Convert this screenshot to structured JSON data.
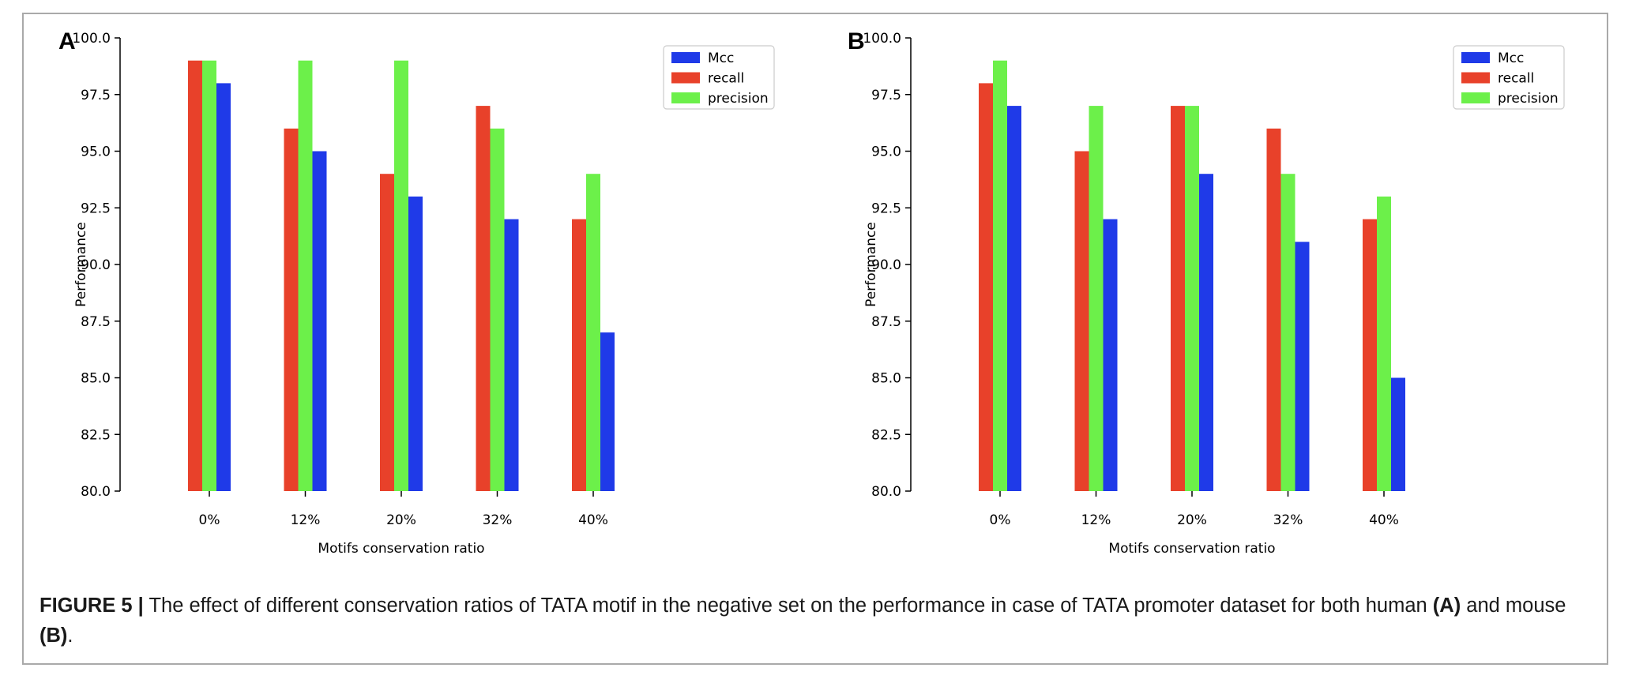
{
  "chart_data": [
    {
      "type": "bar",
      "panel_label": "A",
      "categories": [
        "0%",
        "12%",
        "20%",
        "32%",
        "40%"
      ],
      "series": [
        {
          "name": "recall",
          "color": "#e8412a",
          "values": [
            99,
            96,
            94,
            97,
            92
          ]
        },
        {
          "name": "precision",
          "color": "#6cf04a",
          "values": [
            99,
            99,
            99,
            96,
            94
          ]
        },
        {
          "name": "Mcc",
          "color": "#1f3ae8",
          "values": [
            98,
            95,
            93,
            92,
            87
          ]
        }
      ],
      "legend_order": [
        "Mcc",
        "recall",
        "precision"
      ],
      "legend_position": "top-right",
      "xlabel": "Motifs conservation ratio",
      "ylabel": "Performance",
      "ylim": [
        80.0,
        100.0
      ],
      "yticks": [
        "80.0",
        "82.5",
        "85.0",
        "87.5",
        "90.0",
        "92.5",
        "95.0",
        "97.5",
        "100.0"
      ],
      "grid": false
    },
    {
      "type": "bar",
      "panel_label": "B",
      "categories": [
        "0%",
        "12%",
        "20%",
        "32%",
        "40%"
      ],
      "series": [
        {
          "name": "recall",
          "color": "#e8412a",
          "values": [
            98,
            95,
            97,
            96,
            92
          ]
        },
        {
          "name": "precision",
          "color": "#6cf04a",
          "values": [
            99,
            97,
            97,
            94,
            93
          ]
        },
        {
          "name": "Mcc",
          "color": "#1f3ae8",
          "values": [
            97,
            92,
            94,
            91,
            85
          ]
        }
      ],
      "legend_order": [
        "Mcc",
        "recall",
        "precision"
      ],
      "legend_position": "top-right",
      "xlabel": "Motifs conservation ratio",
      "ylabel": "Performance",
      "ylim": [
        80.0,
        100.0
      ],
      "yticks": [
        "80.0",
        "82.5",
        "85.0",
        "87.5",
        "90.0",
        "92.5",
        "95.0",
        "97.5",
        "100.0"
      ],
      "grid": false
    }
  ],
  "caption": {
    "figure_label": "FIGURE 5 |",
    "text_1": " The effect of different conservation ratios of TATA motif in the negative set on the performance in case of TATA promoter dataset for both human ",
    "ref_a": "(A)",
    "text_2": " and mouse ",
    "ref_b": "(B)",
    "text_3": "."
  }
}
